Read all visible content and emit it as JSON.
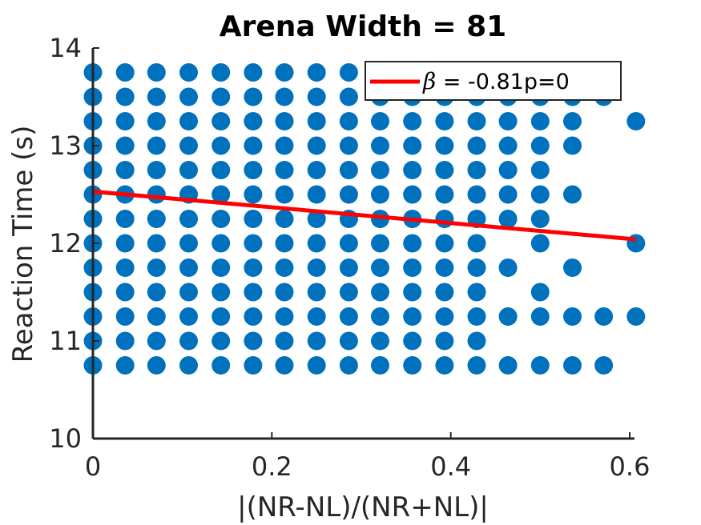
{
  "chart_data": {
    "type": "scatter",
    "title": "Arena Width =  81",
    "xlabel": "|(NR-NL)/(NR+NL)|",
    "ylabel": "Reaction Time (s)",
    "xlim": [
      0,
      0.6
    ],
    "ylim": [
      10,
      14
    ],
    "xticks": [
      "0",
      "0.2",
      "0.4",
      "0.6"
    ],
    "yticks": [
      "10",
      "11",
      "12",
      "13",
      "14"
    ],
    "grid": false,
    "marker_color": "#0072BD",
    "columns": [
      {
        "x": 0.0,
        "y": [
          10.75,
          11.0,
          11.25,
          11.5,
          11.75,
          12.0,
          12.25,
          12.5,
          12.75,
          13.0,
          13.25,
          13.5,
          13.75
        ]
      },
      {
        "x": 0.036,
        "y": [
          10.75,
          11.0,
          11.25,
          11.5,
          11.75,
          12.0,
          12.25,
          12.5,
          12.75,
          13.0,
          13.25,
          13.5,
          13.75
        ]
      },
      {
        "x": 0.071,
        "y": [
          10.75,
          11.0,
          11.25,
          11.5,
          11.75,
          12.0,
          12.25,
          12.5,
          12.75,
          13.0,
          13.25,
          13.5,
          13.75
        ]
      },
      {
        "x": 0.107,
        "y": [
          10.75,
          11.0,
          11.25,
          11.5,
          11.75,
          12.0,
          12.25,
          12.5,
          12.75,
          13.0,
          13.25,
          13.5,
          13.75
        ]
      },
      {
        "x": 0.143,
        "y": [
          10.75,
          11.0,
          11.25,
          11.5,
          11.75,
          12.0,
          12.25,
          12.5,
          12.75,
          13.0,
          13.25,
          13.5,
          13.75
        ]
      },
      {
        "x": 0.179,
        "y": [
          10.75,
          11.0,
          11.25,
          11.5,
          11.75,
          12.0,
          12.25,
          12.5,
          12.75,
          13.0,
          13.25,
          13.5,
          13.75
        ]
      },
      {
        "x": 0.214,
        "y": [
          10.75,
          11.0,
          11.25,
          11.5,
          11.75,
          12.0,
          12.25,
          12.5,
          12.75,
          13.0,
          13.25,
          13.5,
          13.75
        ]
      },
      {
        "x": 0.25,
        "y": [
          10.75,
          11.0,
          11.25,
          11.5,
          11.75,
          12.0,
          12.25,
          12.5,
          12.75,
          13.0,
          13.25,
          13.5,
          13.75
        ]
      },
      {
        "x": 0.286,
        "y": [
          10.75,
          11.0,
          11.25,
          11.5,
          11.75,
          12.0,
          12.25,
          12.5,
          12.75,
          13.0,
          13.25,
          13.5,
          13.75
        ]
      },
      {
        "x": 0.321,
        "y": [
          10.75,
          11.0,
          11.25,
          11.5,
          11.75,
          12.0,
          12.25,
          12.5,
          12.75,
          13.0,
          13.25,
          13.5
        ]
      },
      {
        "x": 0.357,
        "y": [
          10.75,
          11.0,
          11.25,
          11.5,
          11.75,
          12.0,
          12.25,
          12.5,
          12.75,
          13.0,
          13.25,
          13.5
        ]
      },
      {
        "x": 0.393,
        "y": [
          10.75,
          11.0,
          11.25,
          11.5,
          11.75,
          12.0,
          12.25,
          12.5,
          12.75,
          13.0,
          13.25,
          13.5
        ]
      },
      {
        "x": 0.429,
        "y": [
          10.75,
          11.0,
          11.25,
          11.5,
          11.75,
          12.0,
          12.25,
          12.5,
          12.75,
          13.0,
          13.25,
          13.5
        ]
      },
      {
        "x": 0.464,
        "y": [
          10.75,
          11.25,
          11.75,
          12.25,
          12.5,
          12.75,
          13.0,
          13.25,
          13.5
        ]
      },
      {
        "x": 0.5,
        "y": [
          10.75,
          11.25,
          11.5,
          12.0,
          12.25,
          12.5,
          12.75,
          13.0,
          13.25,
          13.5
        ]
      },
      {
        "x": 0.536,
        "y": [
          10.75,
          11.25,
          11.75,
          12.5,
          13.0,
          13.25,
          13.5
        ]
      },
      {
        "x": 0.571,
        "y": [
          10.75,
          11.25,
          13.5
        ]
      },
      {
        "x": 0.607,
        "y": [
          11.25,
          12.0,
          13.25
        ]
      }
    ],
    "fit_line": {
      "x": [
        0,
        0.607
      ],
      "y": [
        12.53,
        12.04
      ],
      "color": "#FF0000"
    },
    "legend": {
      "placement": "top-right",
      "symbol": "β",
      "label": " =  -0.81p=0"
    }
  }
}
